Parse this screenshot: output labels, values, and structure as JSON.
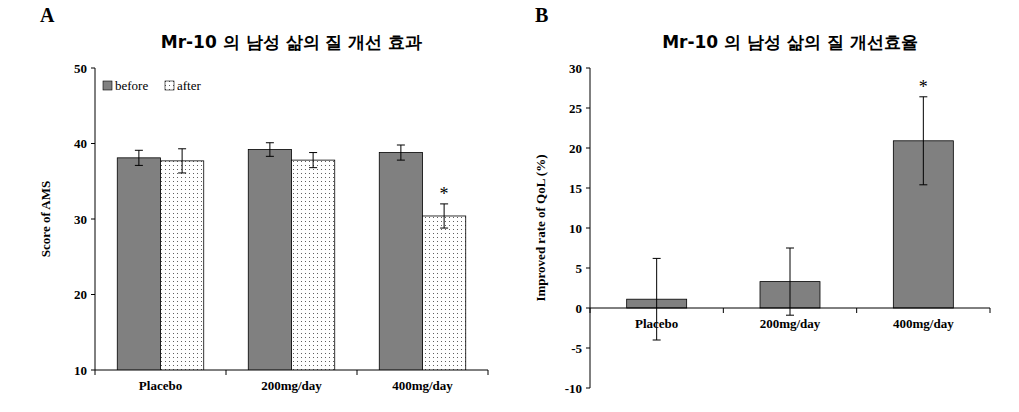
{
  "chart_data": [
    {
      "type": "bar",
      "panel": "A",
      "title": "Mr-10 의 남성 삶의 질 개선 효과",
      "y_label": "Score of AMS",
      "categories": [
        "Placebo",
        "200mg/day",
        "400mg/day"
      ],
      "series": [
        {
          "name": "before",
          "color": "#808080",
          "values": [
            38.1,
            39.2,
            38.8
          ],
          "errors": [
            1.0,
            0.9,
            1.0
          ],
          "significance": [
            null,
            null,
            null
          ]
        },
        {
          "name": "after",
          "color": "#ffffff",
          "values": [
            37.7,
            37.8,
            30.4
          ],
          "errors": [
            1.6,
            1.0,
            1.6
          ],
          "significance": [
            null,
            null,
            "*"
          ]
        }
      ],
      "ylim": [
        10,
        50
      ],
      "yticks": [
        10,
        20,
        30,
        40,
        50
      ],
      "legend": "top-left",
      "grid": false
    },
    {
      "type": "bar",
      "panel": "B",
      "title": "Mr-10 의 남성 삶의 질 개선효율",
      "y_label": "Improved rate of QoL (%)",
      "categories": [
        "Placebo",
        "200mg/day",
        "400mg/day"
      ],
      "values": [
        1.1,
        3.3,
        20.9
      ],
      "errors": [
        5.1,
        4.2,
        5.5
      ],
      "significance": [
        null,
        null,
        "*"
      ],
      "color": "#808080",
      "ylim": [
        -10,
        30
      ],
      "yticks": [
        -10,
        -5,
        0,
        5,
        10,
        15,
        20,
        25,
        30
      ],
      "grid": false
    }
  ]
}
